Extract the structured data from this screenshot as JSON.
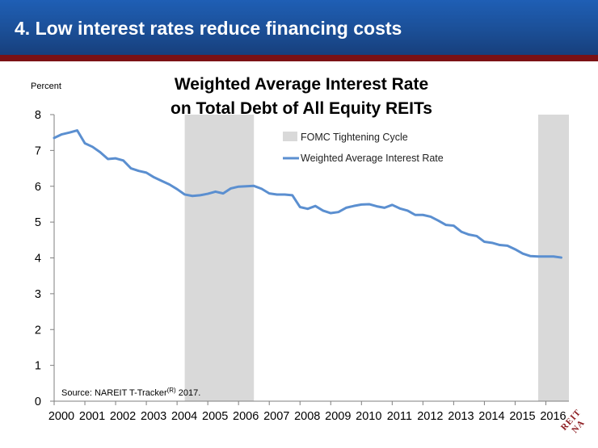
{
  "header": {
    "title": "4.  Low interest rates reduce financing costs",
    "bar_color": "#1b4f97",
    "rule_color": "#7b1114"
  },
  "logo": {
    "text": "NAREIT",
    "color": "#8b1a1f"
  },
  "chart_data": {
    "type": "line",
    "title_line1": "Weighted Average Interest Rate",
    "title_line2": "on Total Debt of All Equity REITs",
    "ylabel": "Percent",
    "xlabel": "",
    "ylim": [
      0,
      8
    ],
    "xlim": [
      2000,
      2016.75
    ],
    "yticks": [
      "0",
      "1",
      "2",
      "3",
      "4",
      "5",
      "6",
      "7",
      "8"
    ],
    "xticks": [
      "2000",
      "2001",
      "2002",
      "2003",
      "2004",
      "2005",
      "2006",
      "2007",
      "2008",
      "2009",
      "2010",
      "2011",
      "2012",
      "2013",
      "2014",
      "2015",
      "2016"
    ],
    "grid": false,
    "legend_position": "top-center",
    "source": "Source: NAREIT T-Tracker",
    "source_sup": "(R)",
    "source_tail": " 2017.",
    "shaded_regions": {
      "name": "FOMC Tightening Cycle",
      "color": "#d9d9d9",
      "ranges": [
        [
          2004.25,
          2006.5
        ],
        [
          2015.75,
          2016.75
        ]
      ]
    },
    "series": [
      {
        "name": "Weighted Average Interest Rate",
        "color": "#5b8fd0",
        "points": [
          [
            2000.0,
            7.35
          ],
          [
            2000.25,
            7.45
          ],
          [
            2000.5,
            7.5
          ],
          [
            2000.75,
            7.56
          ],
          [
            2001.0,
            7.2
          ],
          [
            2001.25,
            7.1
          ],
          [
            2001.5,
            6.95
          ],
          [
            2001.75,
            6.76
          ],
          [
            2002.0,
            6.78
          ],
          [
            2002.25,
            6.72
          ],
          [
            2002.5,
            6.5
          ],
          [
            2002.75,
            6.43
          ],
          [
            2003.0,
            6.38
          ],
          [
            2003.25,
            6.25
          ],
          [
            2003.5,
            6.15
          ],
          [
            2003.75,
            6.05
          ],
          [
            2004.0,
            5.92
          ],
          [
            2004.25,
            5.77
          ],
          [
            2004.5,
            5.73
          ],
          [
            2004.75,
            5.75
          ],
          [
            2005.0,
            5.79
          ],
          [
            2005.25,
            5.85
          ],
          [
            2005.5,
            5.8
          ],
          [
            2005.75,
            5.94
          ],
          [
            2006.0,
            5.99
          ],
          [
            2006.25,
            6.0
          ],
          [
            2006.5,
            6.01
          ],
          [
            2006.75,
            5.93
          ],
          [
            2007.0,
            5.8
          ],
          [
            2007.25,
            5.77
          ],
          [
            2007.5,
            5.77
          ],
          [
            2007.75,
            5.75
          ],
          [
            2008.0,
            5.42
          ],
          [
            2008.25,
            5.37
          ],
          [
            2008.5,
            5.45
          ],
          [
            2008.75,
            5.32
          ],
          [
            2009.0,
            5.25
          ],
          [
            2009.25,
            5.28
          ],
          [
            2009.5,
            5.4
          ],
          [
            2009.75,
            5.45
          ],
          [
            2010.0,
            5.49
          ],
          [
            2010.25,
            5.5
          ],
          [
            2010.5,
            5.44
          ],
          [
            2010.75,
            5.4
          ],
          [
            2011.0,
            5.48
          ],
          [
            2011.25,
            5.38
          ],
          [
            2011.5,
            5.32
          ],
          [
            2011.75,
            5.2
          ],
          [
            2012.0,
            5.2
          ],
          [
            2012.25,
            5.15
          ],
          [
            2012.5,
            5.04
          ],
          [
            2012.75,
            4.92
          ],
          [
            2013.0,
            4.9
          ],
          [
            2013.25,
            4.73
          ],
          [
            2013.5,
            4.65
          ],
          [
            2013.75,
            4.61
          ],
          [
            2014.0,
            4.45
          ],
          [
            2014.25,
            4.42
          ],
          [
            2014.5,
            4.36
          ],
          [
            2014.75,
            4.34
          ],
          [
            2015.0,
            4.24
          ],
          [
            2015.25,
            4.12
          ],
          [
            2015.5,
            4.05
          ],
          [
            2015.75,
            4.04
          ],
          [
            2016.0,
            4.04
          ],
          [
            2016.25,
            4.04
          ],
          [
            2016.5,
            4.01
          ]
        ]
      }
    ]
  }
}
